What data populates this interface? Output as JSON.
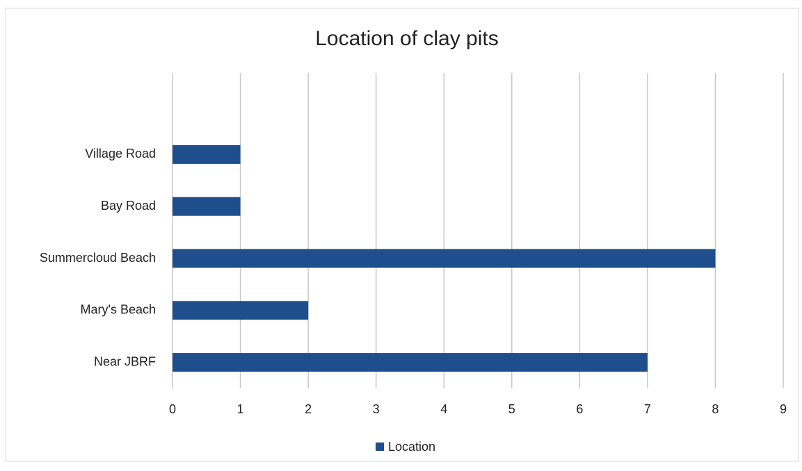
{
  "chart_data": {
    "type": "bar",
    "orientation": "horizontal",
    "title": "Location of clay pits",
    "categories": [
      "Near JBRF",
      "Mary's Beach",
      "Summercloud Beach",
      "Bay Road",
      "Village Road"
    ],
    "series": [
      {
        "name": "Location",
        "color": "#1f4e8c",
        "values": [
          7,
          2,
          8,
          1,
          1
        ]
      }
    ],
    "xlim": [
      0,
      9
    ],
    "xticks": [
      0,
      1,
      2,
      3,
      4,
      5,
      6,
      7,
      8,
      9
    ],
    "grid": true,
    "legend": "bottom"
  }
}
